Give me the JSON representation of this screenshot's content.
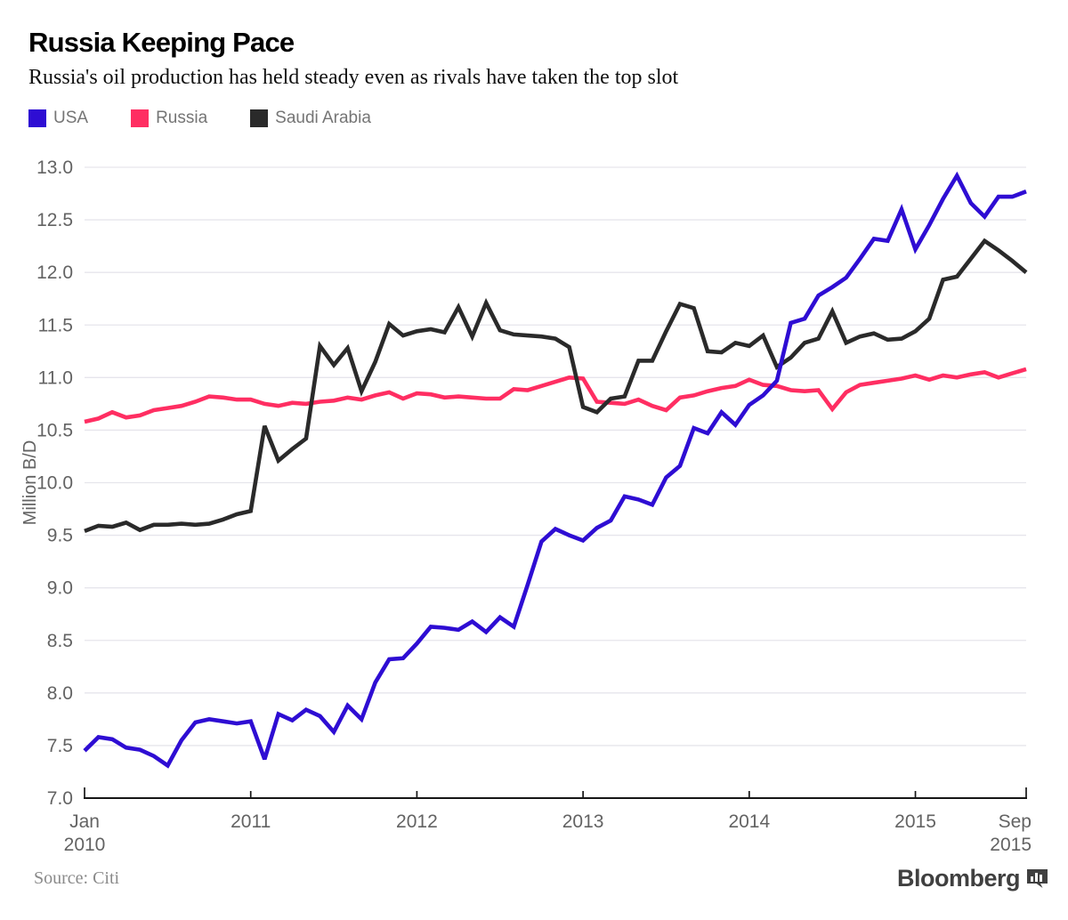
{
  "footer": {
    "brand": "Bloomberg"
  },
  "chart_data": {
    "type": "line",
    "title": "Russia Keeping Pace",
    "subtitle": "Russia's oil production has held steady even as rivals have taken the top slot",
    "source": "Source: Citi",
    "ylabel": "Million B/D",
    "ylim": [
      7.0,
      13.0
    ],
    "yticks": [
      "7.0",
      "7.5",
      "8.0",
      "8.5",
      "9.0",
      "9.5",
      "10.0",
      "10.5",
      "11.0",
      "11.5",
      "12.0",
      "12.5",
      "13.0"
    ],
    "x_range": "Monthly, Jan 2010 to Sep 2015",
    "grid": "horizontal",
    "legend_position": "top-left",
    "axis_color": "#161616",
    "grid_color": "#e6e5ec",
    "tick_text_color": "#636363",
    "xticks": [
      {
        "label": "Jan",
        "label2": "2010",
        "m": 0,
        "align": "middle",
        "end": true
      },
      {
        "label": "2011",
        "m": 12,
        "align": "middle"
      },
      {
        "label": "2012",
        "m": 24,
        "align": "middle"
      },
      {
        "label": "2013",
        "m": 36,
        "align": "middle"
      },
      {
        "label": "2014",
        "m": 48,
        "align": "middle"
      },
      {
        "label": "2015",
        "m": 60,
        "align": "middle"
      },
      {
        "label": "Sep",
        "label2": "2015",
        "m": 68,
        "align": "end",
        "dx": 6,
        "end": true
      }
    ],
    "series": [
      {
        "name": "Russia",
        "color": "#ff2e62",
        "values": [
          10.58,
          10.61,
          10.67,
          10.62,
          10.64,
          10.69,
          10.71,
          10.73,
          10.77,
          10.82,
          10.81,
          10.79,
          10.79,
          10.75,
          10.73,
          10.76,
          10.75,
          10.77,
          10.78,
          10.81,
          10.79,
          10.83,
          10.86,
          10.8,
          10.85,
          10.84,
          10.81,
          10.82,
          10.81,
          10.8,
          10.8,
          10.89,
          10.88,
          10.92,
          10.96,
          11.0,
          10.99,
          10.77,
          10.76,
          10.75,
          10.79,
          10.73,
          10.69,
          10.81,
          10.83,
          10.87,
          10.9,
          10.92,
          10.98,
          10.93,
          10.92,
          10.88,
          10.87,
          10.88,
          10.7,
          10.86,
          10.93,
          10.95,
          10.97,
          10.99,
          11.02,
          10.98,
          11.02,
          11.0,
          11.03,
          11.05,
          11.0,
          11.04,
          11.08
        ]
      },
      {
        "name": "Saudi Arabia",
        "color": "#2a2a2a",
        "values": [
          9.54,
          9.59,
          9.58,
          9.62,
          9.55,
          9.6,
          9.6,
          9.61,
          9.6,
          9.61,
          9.65,
          9.7,
          9.73,
          10.54,
          10.21,
          10.32,
          10.42,
          11.3,
          11.12,
          11.28,
          10.87,
          11.15,
          11.51,
          11.4,
          11.44,
          11.46,
          11.43,
          11.67,
          11.39,
          11.71,
          11.45,
          11.41,
          11.4,
          11.39,
          11.37,
          11.29,
          10.72,
          10.67,
          10.8,
          10.82,
          11.16,
          11.16,
          11.44,
          11.7,
          11.66,
          11.25,
          11.24,
          11.33,
          11.3,
          11.4,
          11.1,
          11.19,
          11.33,
          11.37,
          11.63,
          11.33,
          11.39,
          11.42,
          11.36,
          11.37,
          11.44,
          11.56,
          11.93,
          11.96,
          12.13,
          12.3,
          12.21,
          12.11,
          12.0
        ]
      },
      {
        "name": "USA",
        "color": "#2e0dd3",
        "values": [
          7.45,
          7.58,
          7.56,
          7.48,
          7.46,
          7.4,
          7.31,
          7.55,
          7.72,
          7.75,
          7.73,
          7.71,
          7.73,
          7.37,
          7.8,
          7.74,
          7.84,
          7.78,
          7.63,
          7.88,
          7.75,
          8.1,
          8.32,
          8.33,
          8.47,
          8.63,
          8.62,
          8.6,
          8.68,
          8.58,
          8.72,
          8.63,
          9.03,
          9.44,
          9.56,
          9.5,
          9.45,
          9.57,
          9.64,
          9.87,
          9.84,
          9.79,
          10.05,
          10.16,
          10.52,
          10.47,
          10.67,
          10.55,
          10.74,
          10.83,
          10.97,
          11.52,
          11.56,
          11.78,
          11.86,
          11.95,
          12.13,
          12.32,
          12.3,
          12.6,
          12.22,
          12.45,
          12.7,
          12.92,
          12.66,
          12.53,
          12.72,
          12.72,
          12.77
        ]
      }
    ],
    "legend_order": [
      "USA",
      "Russia",
      "Saudi Arabia"
    ]
  }
}
